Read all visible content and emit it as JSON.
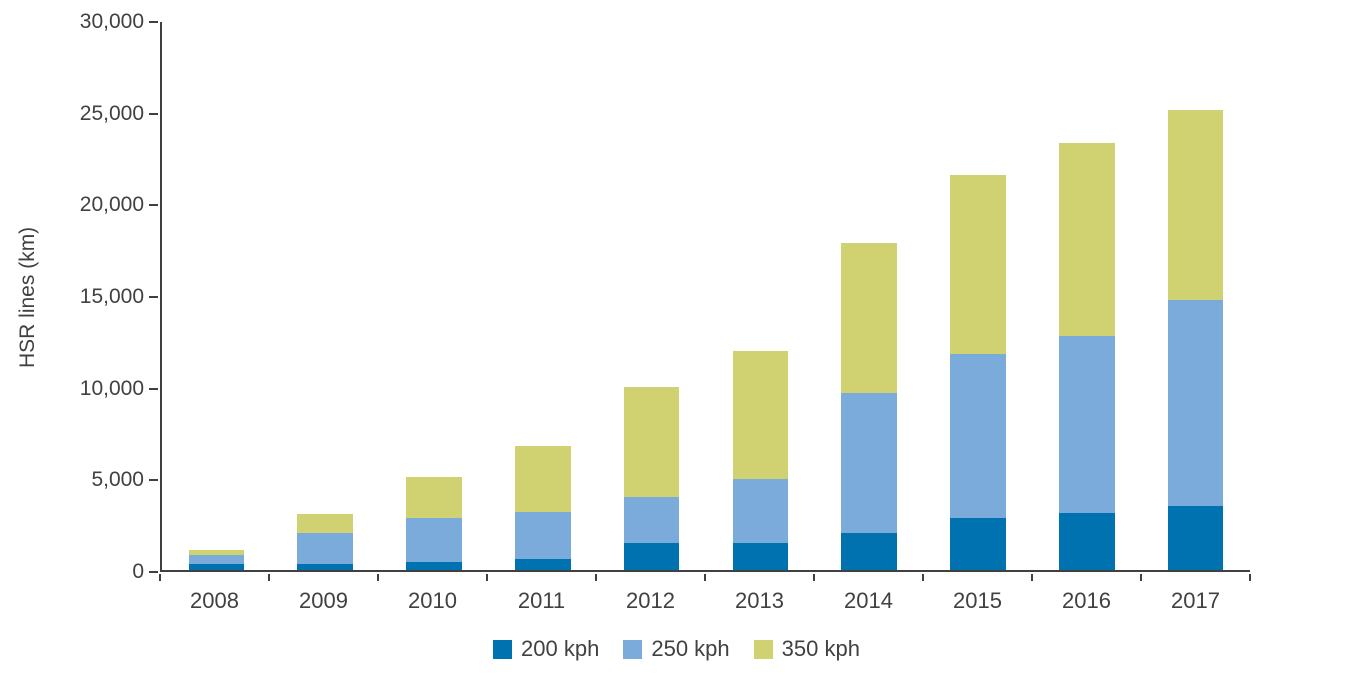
{
  "chart_data": {
    "type": "bar",
    "stacked": true,
    "title": "",
    "xlabel": "",
    "ylabel": "HSR lines (km)",
    "ylim": [
      0,
      30000
    ],
    "grid": false,
    "legend_position": "bottom",
    "categories": [
      "2008",
      "2009",
      "2010",
      "2011",
      "2012",
      "2013",
      "2014",
      "2015",
      "2016",
      "2017"
    ],
    "series": [
      {
        "name": "200 kph",
        "color": "#0072b0",
        "values": [
          350,
          350,
          450,
          600,
          1500,
          1500,
          2000,
          2850,
          3100,
          3500
        ]
      },
      {
        "name": "250 kph",
        "color": "#7aabdb",
        "values": [
          450,
          1650,
          2400,
          2600,
          2500,
          3500,
          7700,
          8950,
          9700,
          11300
        ]
      },
      {
        "name": "350 kph",
        "color": "#d0d271",
        "values": [
          300,
          1050,
          2250,
          3600,
          6000,
          7000,
          8200,
          9800,
          10600,
          10400
        ]
      }
    ],
    "yticks": [
      {
        "value": 0,
        "label": "0"
      },
      {
        "value": 5000,
        "label": "5,000"
      },
      {
        "value": 10000,
        "label": "10,000"
      },
      {
        "value": 15000,
        "label": "15,000"
      },
      {
        "value": 20000,
        "label": "20,000"
      },
      {
        "value": 25000,
        "label": "25,000"
      },
      {
        "value": 30000,
        "label": "30,000"
      }
    ]
  }
}
